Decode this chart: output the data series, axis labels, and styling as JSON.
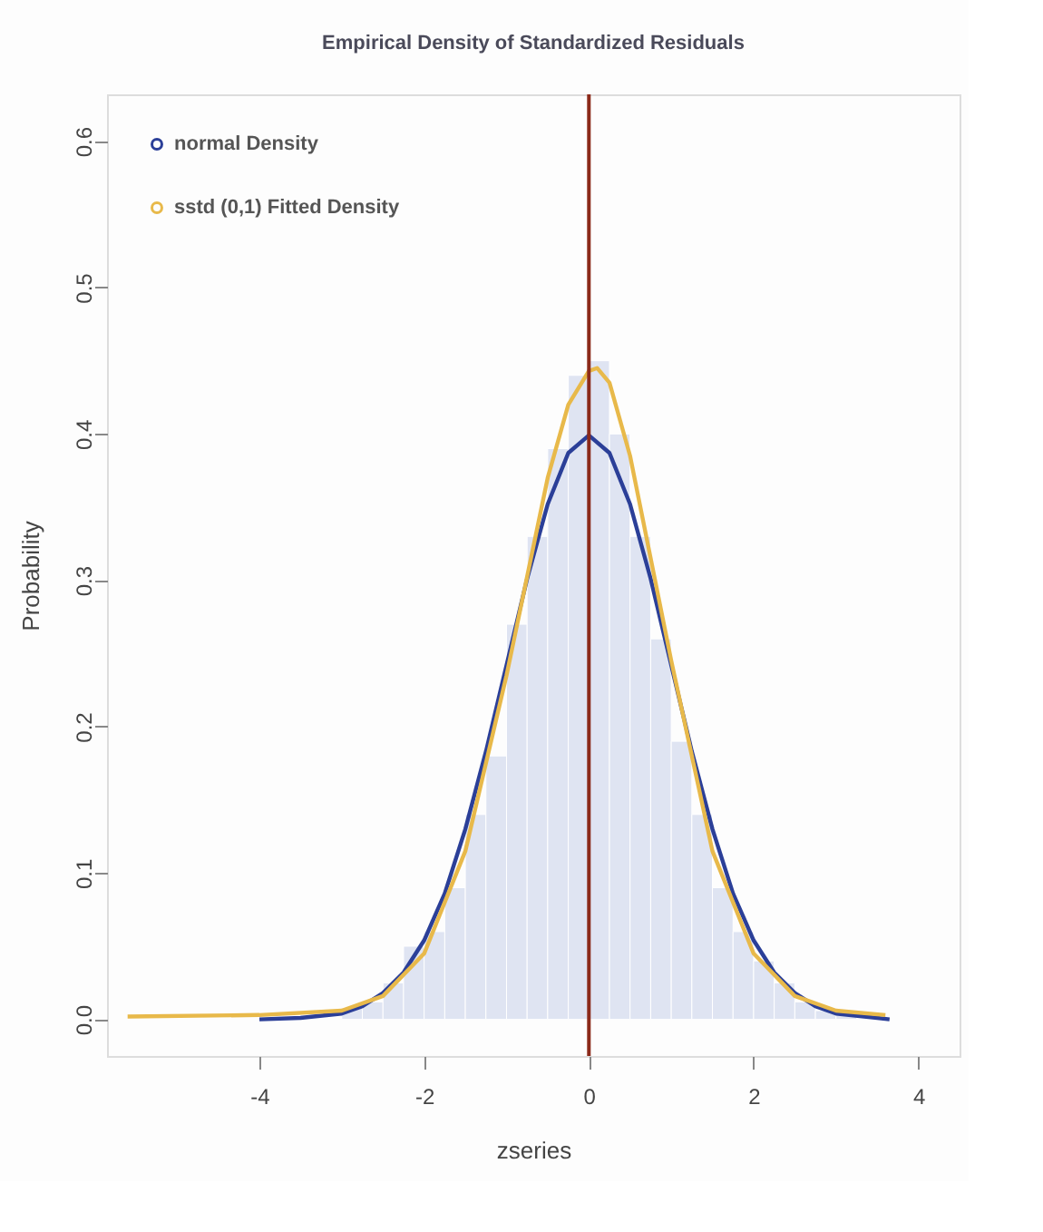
{
  "chart_data": {
    "type": "histogram",
    "title": "Empirical Density of Standardized Residuals",
    "xlabel": "zseries",
    "ylabel": "Probability",
    "bins": [
      -3.5,
      -3.25,
      -3.0,
      -2.75,
      -2.5,
      -2.25,
      -2.0,
      -1.75,
      -1.5,
      -1.25,
      -1.0,
      -0.75,
      -0.5,
      -0.25,
      0.0,
      0.25,
      0.5,
      0.75,
      1.0,
      1.25,
      1.5,
      1.75,
      2.0,
      2.25,
      2.5,
      2.75,
      3.0,
      3.25,
      3.5
    ],
    "values": [
      null,
      null,
      0.008,
      0.012,
      0.025,
      0.05,
      0.06,
      0.09,
      0.14,
      0.18,
      0.27,
      0.33,
      0.39,
      0.44,
      0.45,
      0.4,
      0.33,
      0.26,
      0.19,
      0.14,
      0.09,
      0.06,
      0.04,
      0.025,
      0.012,
      0.006,
      0.003,
      null
    ],
    "color": "#dfe4f2",
    "series": [
      {
        "name": "normal Density",
        "type": "line",
        "color": "#2b3f98",
        "x": [
          -4,
          -3.5,
          -3,
          -2.75,
          -2.5,
          -2.25,
          -2,
          -1.75,
          -1.5,
          -1.25,
          -1,
          -0.75,
          -0.5,
          -0.25,
          0,
          0.25,
          0.5,
          0.75,
          1,
          1.25,
          1.5,
          1.75,
          2,
          2.25,
          2.5,
          2.75,
          3,
          3.5,
          3.65
        ],
        "values": [
          0.0,
          0.001,
          0.004,
          0.009,
          0.018,
          0.032,
          0.054,
          0.086,
          0.13,
          0.183,
          0.242,
          0.301,
          0.352,
          0.387,
          0.399,
          0.387,
          0.352,
          0.301,
          0.242,
          0.183,
          0.13,
          0.086,
          0.054,
          0.032,
          0.018,
          0.009,
          0.004,
          0.001,
          0.0
        ]
      },
      {
        "name": "sstd (0,1) Fitted Density",
        "type": "line",
        "color": "#e8b94a",
        "x": [
          -5.6,
          -4,
          -3,
          -2.5,
          -2,
          -1.5,
          -1,
          -0.5,
          -0.25,
          0,
          0.1,
          0.25,
          0.5,
          1,
          1.5,
          2,
          2.5,
          3,
          3.6
        ],
        "values": [
          0.002,
          0.003,
          0.006,
          0.016,
          0.045,
          0.115,
          0.235,
          0.37,
          0.42,
          0.443,
          0.445,
          0.435,
          0.385,
          0.245,
          0.115,
          0.045,
          0.016,
          0.006,
          0.003
        ]
      }
    ],
    "ref_lines": [
      {
        "axis": "x",
        "value": 0,
        "color": "#8b2a1a"
      }
    ],
    "xlim": [
      -5.85,
      4.5
    ],
    "ylim": [
      -0.025,
      0.632
    ],
    "xticks": [
      -4,
      -2,
      0,
      2,
      4
    ],
    "yticks": [
      {
        "value": 0,
        "label": "0.0"
      },
      0.1,
      0.2,
      0.3,
      0.4,
      0.5,
      0.6
    ],
    "grid": false,
    "legend": "top left",
    "marker": "none"
  }
}
